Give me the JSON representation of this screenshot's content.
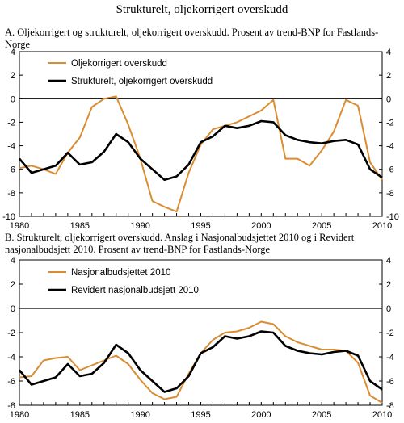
{
  "title": "Strukturelt, oljekorrigert overskudd",
  "panels": {
    "a": {
      "title": "A. Oljekorrigert og strukturelt, oljekorrigert overskudd. Prosent av trend-BNP for Fastlands-Norge"
    },
    "b": {
      "title": "B.  Strukturelt, oljekorrigert overskudd. Anslag i Nasjonalbudsjettet 2010 og i Revidert nasjonalbudsjett 2010. Prosent av trend-BNP for Fastlands-Norge"
    }
  },
  "colors": {
    "orange": "#D98C32",
    "black": "#000000"
  },
  "chart_data": [
    {
      "type": "line",
      "title": "A. Oljekorrigert og strukturelt, oljekorrigert overskudd. Prosent av trend-BNP for Fastlands-Norge",
      "x": [
        1980,
        1981,
        1982,
        1983,
        1984,
        1985,
        1986,
        1987,
        1988,
        1989,
        1990,
        1991,
        1992,
        1993,
        1994,
        1995,
        1996,
        1997,
        1998,
        1999,
        2000,
        2001,
        2002,
        2003,
        2004,
        2005,
        2006,
        2007,
        2008,
        2009,
        2010
      ],
      "xlim": [
        1980,
        2010
      ],
      "xticks": [
        1980,
        1985,
        1990,
        1995,
        2000,
        2005,
        2010
      ],
      "ylim": [
        -10,
        4
      ],
      "yticks": [
        -10,
        -8,
        -6,
        -4,
        -2,
        0,
        2,
        4
      ],
      "ytick_labels": [
        "-10",
        "-8",
        "-6",
        "-4",
        "-2",
        "0",
        "2",
        "4"
      ],
      "grid": false,
      "legend_position": "top-left",
      "series": [
        {
          "name": "Oljekorrigert overskudd",
          "color": "#D98C32",
          "values": [
            -5.9,
            -5.7,
            -6.0,
            -6.4,
            -4.6,
            -3.3,
            -0.7,
            0.0,
            0.2,
            -2.2,
            -5.1,
            -8.7,
            -9.2,
            -9.6,
            -6.3,
            -3.9,
            -2.6,
            -2.3,
            -2.0,
            -1.5,
            -1.0,
            -0.1,
            -5.1,
            -5.1,
            -5.7,
            -4.4,
            -2.8,
            -0.1,
            -0.6,
            -5.4,
            -6.9
          ]
        },
        {
          "name": "Strukturelt, oljekorrigert overskudd",
          "color": "#000000",
          "values": [
            -5.1,
            -6.3,
            -6.0,
            -5.7,
            -4.6,
            -5.6,
            -5.4,
            -4.5,
            -3.0,
            -3.7,
            -5.1,
            -6.0,
            -6.9,
            -6.6,
            -5.6,
            -3.7,
            -3.2,
            -2.3,
            -2.5,
            -2.3,
            -1.9,
            -2.0,
            -3.1,
            -3.5,
            -3.7,
            -3.8,
            -3.6,
            -3.5,
            -3.9,
            -6.0,
            -6.7
          ]
        }
      ]
    },
    {
      "type": "line",
      "title": "B.  Strukturelt, oljekorrigert overskudd. Anslag i Nasjonalbudsjettet 2010 og i Revidert nasjonalbudsjett 2010. Prosent av trend-BNP for Fastlands-Norge",
      "x": [
        1980,
        1981,
        1982,
        1983,
        1984,
        1985,
        1986,
        1987,
        1988,
        1989,
        1990,
        1991,
        1992,
        1993,
        1994,
        1995,
        1996,
        1997,
        1998,
        1999,
        2000,
        2001,
        2002,
        2003,
        2004,
        2005,
        2006,
        2007,
        2008,
        2009,
        2010
      ],
      "xlim": [
        1980,
        2010
      ],
      "xticks": [
        1980,
        1985,
        1990,
        1995,
        2000,
        2005,
        2010
      ],
      "ylim": [
        -8,
        4
      ],
      "yticks": [
        -8,
        -6,
        -4,
        -2,
        0,
        2,
        4
      ],
      "ytick_labels": [
        "-8",
        "-6",
        "-4",
        "-2",
        "0",
        "2",
        "4"
      ],
      "grid": false,
      "legend_position": "top-left",
      "series": [
        {
          "name": "Nasjonalbudsjettet 2010",
          "color": "#D98C32",
          "values": [
            -5.7,
            -5.6,
            -4.3,
            -4.1,
            -4.0,
            -5.1,
            -4.7,
            -4.3,
            -3.9,
            -4.6,
            -5.9,
            -7.0,
            -7.5,
            -7.3,
            -5.4,
            -3.7,
            -2.6,
            -2.0,
            -1.9,
            -1.6,
            -1.1,
            -1.3,
            -2.3,
            -2.8,
            -3.1,
            -3.4,
            -3.4,
            -3.5,
            -4.5,
            -7.2,
            -7.8
          ]
        },
        {
          "name": "Revidert nasjonalbudsjett 2010",
          "color": "#000000",
          "values": [
            -5.1,
            -6.3,
            -6.0,
            -5.7,
            -4.6,
            -5.6,
            -5.4,
            -4.5,
            -3.0,
            -3.7,
            -5.1,
            -6.0,
            -6.9,
            -6.6,
            -5.6,
            -3.7,
            -3.2,
            -2.3,
            -2.5,
            -2.3,
            -1.9,
            -2.0,
            -3.1,
            -3.5,
            -3.7,
            -3.8,
            -3.6,
            -3.5,
            -3.9,
            -6.0,
            -6.7
          ]
        }
      ]
    }
  ]
}
